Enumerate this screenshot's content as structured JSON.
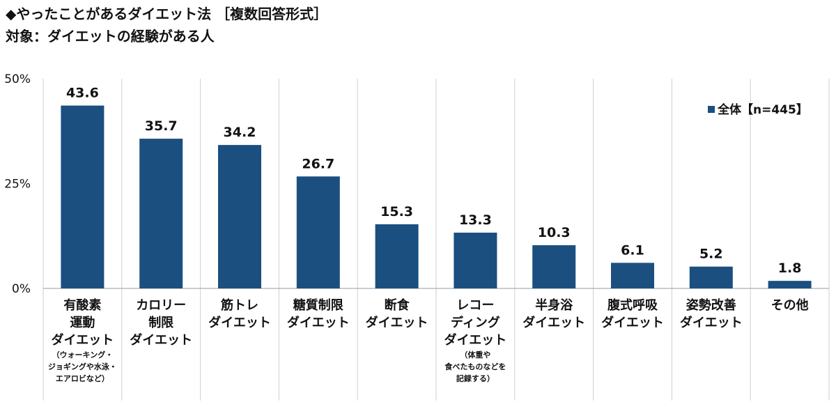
{
  "title": "◆やったことがあるダイエット法 ［複数回答形式］",
  "subtitle": "対象：ダイエットの経験がある人",
  "chart_data": {
    "type": "bar",
    "ylim": [
      0,
      50
    ],
    "yticks": [
      {
        "value": 0,
        "label": "0%"
      },
      {
        "value": 25,
        "label": "25%"
      },
      {
        "value": 50,
        "label": "50%"
      }
    ],
    "grid": "vertical separators between categories",
    "legend_position": "top-right",
    "bar_color": "#1a4f80",
    "series": [
      {
        "name": "全体【n=445】",
        "values": [
          43.6,
          35.7,
          34.2,
          26.7,
          15.3,
          13.3,
          10.3,
          6.1,
          5.2,
          1.8
        ]
      }
    ],
    "categories": [
      {
        "lines": [
          "有酸素",
          "運動",
          "ダイエット"
        ],
        "note": [
          "（ウォーキング・",
          "ジョギングや水泳・",
          "エアロビなど）"
        ]
      },
      {
        "lines": [
          "カロリー",
          "制限",
          "ダイエット"
        ],
        "note": []
      },
      {
        "lines": [
          "筋トレ",
          "ダイエット"
        ],
        "note": []
      },
      {
        "lines": [
          "糖質制限",
          "ダイエット"
        ],
        "note": []
      },
      {
        "lines": [
          "断食",
          "ダイエット"
        ],
        "note": []
      },
      {
        "lines": [
          "レコー",
          "ディング",
          "ダイエット"
        ],
        "note": [
          "（体重や",
          "食べたものなどを",
          "記録する）"
        ]
      },
      {
        "lines": [
          "半身浴",
          "ダイエット"
        ],
        "note": []
      },
      {
        "lines": [
          "腹式呼吸",
          "ダイエット"
        ],
        "note": []
      },
      {
        "lines": [
          "姿勢改善",
          "ダイエット"
        ],
        "note": []
      },
      {
        "lines": [
          "その他"
        ],
        "note": []
      }
    ]
  }
}
